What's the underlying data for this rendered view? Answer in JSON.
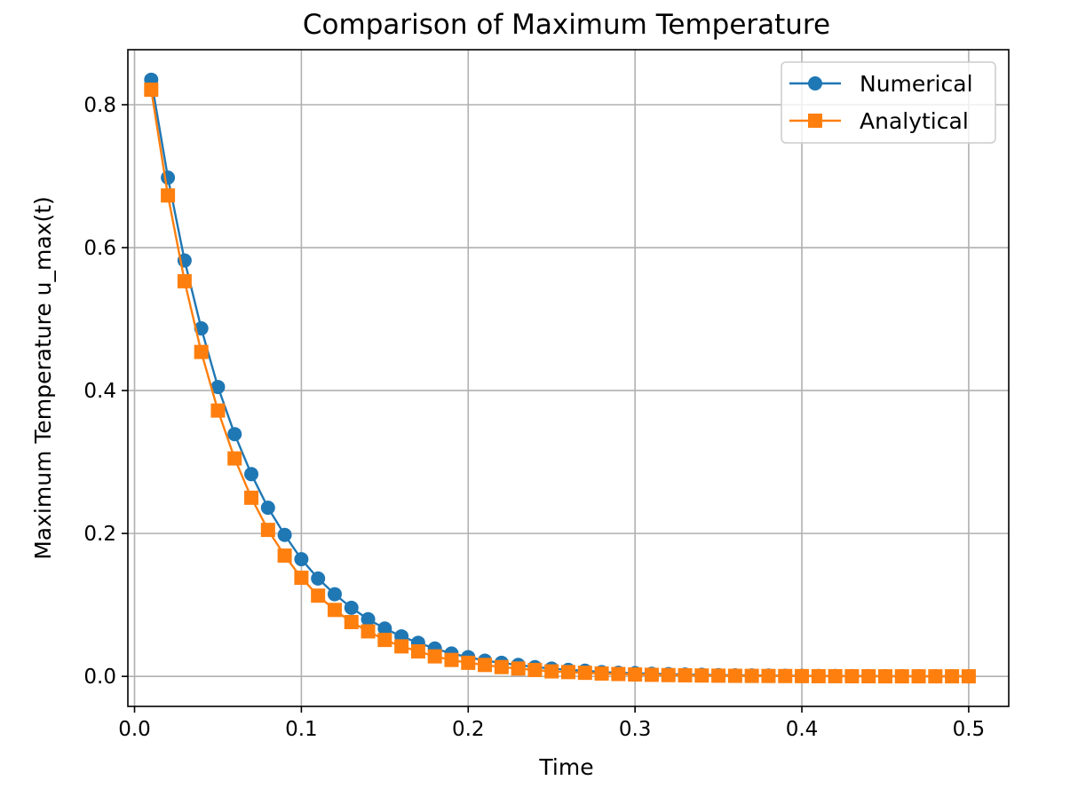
{
  "chart_data": {
    "type": "line",
    "title": "Comparison of Maximum Temperature",
    "xlabel": "Time",
    "ylabel": "Maximum Temperature u_max(t)",
    "xlim": [
      -0.004,
      0.524
    ],
    "ylim": [
      -0.042,
      0.877
    ],
    "xticks": [
      0.0,
      0.1,
      0.2,
      0.3,
      0.4,
      0.5
    ],
    "xtick_labels": [
      "0.0",
      "0.1",
      "0.2",
      "0.3",
      "0.4",
      "0.5"
    ],
    "yticks": [
      0.0,
      0.2,
      0.4,
      0.6,
      0.8
    ],
    "ytick_labels": [
      "0.0",
      "0.2",
      "0.4",
      "0.6",
      "0.8"
    ],
    "grid": true,
    "legend_position": "top-right",
    "x": [
      0.01,
      0.02,
      0.03,
      0.04,
      0.05,
      0.06,
      0.07,
      0.08,
      0.09,
      0.1,
      0.11,
      0.12,
      0.13,
      0.14,
      0.15,
      0.16,
      0.17,
      0.18,
      0.19,
      0.2,
      0.21,
      0.22,
      0.23,
      0.24,
      0.25,
      0.26,
      0.27,
      0.28,
      0.29,
      0.3,
      0.31,
      0.32,
      0.33,
      0.34,
      0.35,
      0.36,
      0.37,
      0.38,
      0.39,
      0.4,
      0.41,
      0.42,
      0.43,
      0.44,
      0.45,
      0.46,
      0.47,
      0.48,
      0.49,
      0.5
    ],
    "series": [
      {
        "name": "Numerical",
        "color": "#1f77b4",
        "marker": "circle",
        "values": [
          0.835,
          0.698,
          0.582,
          0.487,
          0.405,
          0.339,
          0.283,
          0.236,
          0.198,
          0.164,
          0.137,
          0.115,
          0.096,
          0.08,
          0.067,
          0.056,
          0.047,
          0.039,
          0.032,
          0.027,
          0.022,
          0.019,
          0.016,
          0.013,
          0.011,
          0.009,
          0.008,
          0.006,
          0.005,
          0.0045,
          0.0037,
          0.0031,
          0.0026,
          0.0022,
          0.0018,
          0.0015,
          0.0013,
          0.0011,
          0.0009,
          0.0007,
          0.0006,
          0.0005,
          0.0004,
          0.0004,
          0.0003,
          0.0003,
          0.0002,
          0.0002,
          0.0002,
          0.0001
        ]
      },
      {
        "name": "Analytical",
        "color": "#ff7f0e",
        "marker": "square",
        "values": [
          0.821,
          0.673,
          0.553,
          0.454,
          0.372,
          0.305,
          0.25,
          0.205,
          0.169,
          0.138,
          0.113,
          0.093,
          0.076,
          0.063,
          0.051,
          0.042,
          0.035,
          0.028,
          0.023,
          0.019,
          0.016,
          0.013,
          0.011,
          0.009,
          0.007,
          0.006,
          0.005,
          0.004,
          0.0033,
          0.0027,
          0.0022,
          0.0018,
          0.0015,
          0.0012,
          0.001,
          0.0008,
          0.0007,
          0.0006,
          0.0005,
          0.0004,
          0.0003,
          0.0003,
          0.0002,
          0.0002,
          0.0001,
          0.0001,
          0.0001,
          0.0001,
          0.0001,
          0.0001
        ]
      }
    ]
  }
}
